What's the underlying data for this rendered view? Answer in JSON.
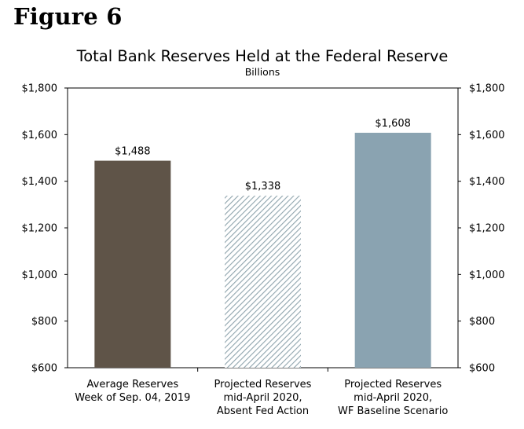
{
  "figure_label": "Figure 6",
  "chart_data": {
    "type": "bar",
    "title": "Total Bank Reserves Held at the Federal Reserve",
    "subtitle": "Billions",
    "categories": [
      [
        "Average Reserves",
        "Week of Sep. 04, 2019"
      ],
      [
        "Projected Reserves",
        "mid-April 2020,",
        "Absent Fed Action"
      ],
      [
        "Projected Reserves",
        "mid-April 2020,",
        "WF Baseline Scenario"
      ]
    ],
    "values": [
      1488,
      1338,
      1608
    ],
    "data_labels": [
      "$1,488",
      "$1,338",
      "$1,608"
    ],
    "bar_colors": [
      "#5f5448",
      "#8fa4ad",
      "#8aa3b1"
    ],
    "bar_patterns": [
      "solid",
      "diagonal-hatch",
      "solid"
    ],
    "ylim": [
      600,
      1800
    ],
    "yticks": [
      600,
      800,
      1000,
      1200,
      1400,
      1600,
      1800
    ],
    "ytick_labels": [
      "$600",
      "$800",
      "$1,000",
      "$1,200",
      "$1,400",
      "$1,600",
      "$1,800"
    ],
    "right_axis": true,
    "grid": false,
    "legend": "none"
  }
}
